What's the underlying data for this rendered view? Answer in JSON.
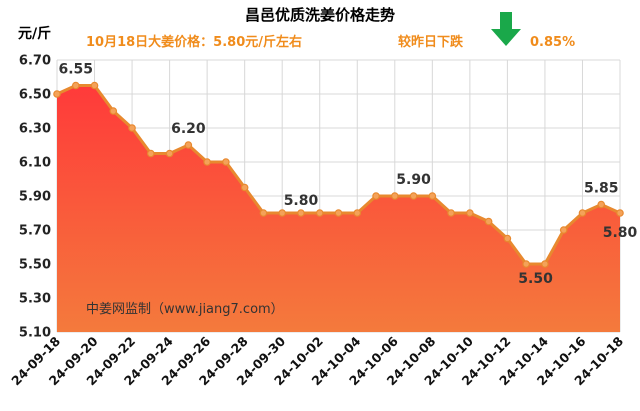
{
  "chart_data": {
    "type": "area",
    "title": "昌邑优质洗姜价格走势",
    "ylabel": "元/斤",
    "info_price": "10月18日大姜价格：5.80元/斤左右",
    "info_change": "较昨日下跌",
    "info_change_pct": "0.85%",
    "watermark": "中姜网监制（www.jiang7.com）",
    "ylim": [
      5.1,
      6.7
    ],
    "yticks": [
      "5.10",
      "5.30",
      "5.50",
      "5.70",
      "5.90",
      "6.10",
      "6.30",
      "6.50",
      "6.70"
    ],
    "ytick_values": [
      5.1,
      5.3,
      5.5,
      5.7,
      5.9,
      6.1,
      6.3,
      6.5,
      6.7
    ],
    "xtick_labels": [
      "24-09-18",
      "24-09-20",
      "24-09-22",
      "24-09-24",
      "24-09-26",
      "24-09-28",
      "24-09-30",
      "24-10-02",
      "24-10-04",
      "24-10-06",
      "24-10-08",
      "24-10-10",
      "24-10-12",
      "24-10-14",
      "24-10-16",
      "24-10-18"
    ],
    "x": [
      "24-09-18",
      "24-09-19",
      "24-09-20",
      "24-09-21",
      "24-09-22",
      "24-09-23",
      "24-09-24",
      "24-09-25",
      "24-09-26",
      "24-09-27",
      "24-09-28",
      "24-09-29",
      "24-09-30",
      "24-10-01",
      "24-10-02",
      "24-10-03",
      "24-10-04",
      "24-10-05",
      "24-10-06",
      "24-10-07",
      "24-10-08",
      "24-10-09",
      "24-10-10",
      "24-10-11",
      "24-10-12",
      "24-10-13",
      "24-10-14",
      "24-10-15",
      "24-10-16",
      "24-10-17",
      "24-10-18"
    ],
    "values": [
      6.5,
      6.55,
      6.55,
      6.4,
      6.3,
      6.15,
      6.15,
      6.2,
      6.1,
      6.1,
      5.95,
      5.8,
      5.8,
      5.8,
      5.8,
      5.8,
      5.8,
      5.9,
      5.9,
      5.9,
      5.9,
      5.8,
      5.8,
      5.75,
      5.65,
      5.5,
      5.5,
      5.7,
      5.8,
      5.85,
      5.8
    ],
    "data_labels": [
      {
        "index": 1,
        "text": "6.55"
      },
      {
        "index": 7,
        "text": "6.20"
      },
      {
        "index": 14,
        "text": "5.80"
      },
      {
        "index": 19,
        "text": "5.90"
      },
      {
        "index": 26,
        "text": "5.50"
      },
      {
        "index": 29,
        "text": "5.85"
      },
      {
        "index": 30,
        "text": "5.80"
      }
    ],
    "grid": true,
    "colors": {
      "line": "#e8892f",
      "marker_fill": "#f4a259",
      "area_top": "#ff3a3a",
      "area_bottom": "#f47a3c",
      "arrow": "#1aa84a",
      "info": "#f08c1c"
    }
  }
}
